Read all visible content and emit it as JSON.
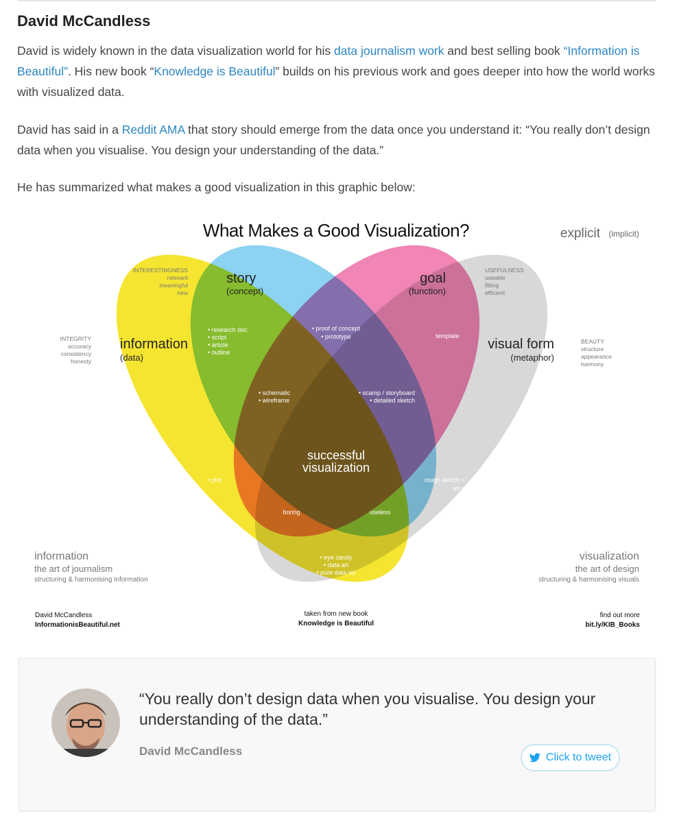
{
  "heading": "David McCandless",
  "p1": {
    "t1": "David is widely known in the data visualization world for his ",
    "link1": "data journalism work",
    "t2": " and best selling book ",
    "link2": "“Information is Beautiful”",
    "t3": ". His new book “",
    "link3": "Knowledge is Beautiful",
    "t4": "” builds on his previous work and goes deeper into how the world works with visualized data."
  },
  "p2": {
    "t1": "David has said in a ",
    "link1": "Reddit AMA",
    "t2": " that story should emerge from the data once you understand it: “You really don’t design data when you visualise. You design your understanding of the data.”"
  },
  "p3": "He has summarized what makes a good visualization in this graphic below:",
  "graphic": {
    "title": "What Makes a Good Visualization?",
    "legend_explicit": "explicit",
    "legend_implicit": "(implicit)",
    "colors": {
      "information": "#f5e31e",
      "story": "#7fcdf0",
      "goal": "#ef6fa8",
      "visual_form": "#d6d6d6"
    },
    "sets": {
      "story": {
        "label": "story",
        "sub": "(concept)"
      },
      "goal": {
        "label": "goal",
        "sub": "(function)"
      },
      "information": {
        "label": "information",
        "sub": "(data)"
      },
      "visual_form": {
        "label": "visual form",
        "sub": "(metaphor)"
      }
    },
    "side_info": {
      "interestingness": [
        "INTERESTINGNESS",
        "relevant",
        "meaningful",
        "new"
      ],
      "integrity": [
        "INTEGRITY",
        "accuracy",
        "consistency",
        "honesty"
      ],
      "usefulness": [
        "USEFULNESS",
        "useable",
        "fitting",
        "efficient"
      ],
      "beauty": [
        "BEAUTY",
        "structure",
        "appearance",
        "harmony"
      ]
    },
    "regions": {
      "info_story": [
        "• research doc",
        "• script",
        "• article",
        "• outline"
      ],
      "story_goal": [
        "• proof of concept",
        "• prototype"
      ],
      "goal_visual": "template",
      "schematic": [
        "• schematic",
        "• wireframe"
      ],
      "scamp": [
        "• scamp / storyboard",
        "• detailed sketch"
      ],
      "center": [
        "successful",
        "visualization"
      ],
      "plot": "• plot",
      "rough": [
        "rough sketch •",
        "art •"
      ],
      "boring": "boring",
      "useless": "useless",
      "eye_candy": [
        "• eye candy",
        "• data art",
        "• pure data viz"
      ]
    },
    "bottom_left": {
      "title": "information",
      "sub1": "the art of journalism",
      "sub2": "structuring & harmonising information"
    },
    "bottom_right": {
      "title": "visualization",
      "sub1": "the art of design",
      "sub2": "structuring & harmonising visuals"
    },
    "credit_left": {
      "l1": "David McCandless",
      "l2": "InformationisBeautiful.net"
    },
    "credit_center": {
      "l1": "taken from new book",
      "l2": "Knowledge is Beautiful"
    },
    "credit_right": {
      "l1": "find out more",
      "l2": "bit.ly/KIB_Books"
    }
  },
  "quote": {
    "text": "“You really don’t design data when you visualise. You design your understanding of the data.”",
    "author": "David McCandless",
    "tweet_label": "Click to tweet",
    "tweet_icon": "twitter-bird-icon"
  }
}
